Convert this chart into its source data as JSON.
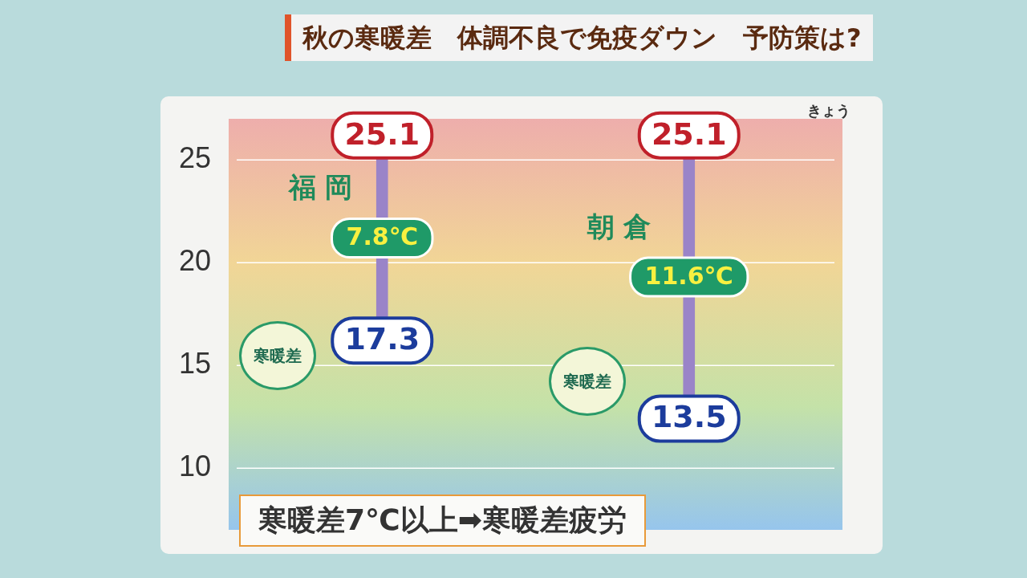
{
  "chart_data": {
    "type": "bar",
    "title": "秋の寒暖差　体調不良で免疫ダウン　予防策は?",
    "categories": [
      "福岡",
      "朝倉"
    ],
    "base": [
      17.3,
      13.5
    ],
    "values": [
      7.8,
      11.6
    ],
    "value_labels": [
      "7.8℃",
      "11.6℃"
    ],
    "color": "#9a84c8",
    "ylim": [
      7,
      27
    ],
    "yticks": [
      10,
      15,
      20,
      25
    ],
    "grid": "y",
    "annotations": [
      "きょう",
      "寒暖差",
      "寒暖差",
      "寒暖差7℃以上➡寒暖差疲労",
      {
        "text": "25.1",
        "x": "福岡",
        "y": 25.1
      },
      {
        "text": "17.3",
        "x": "福岡",
        "y": 17.3
      },
      {
        "text": "25.1",
        "x": "朝倉",
        "y": 25.1
      },
      {
        "text": "13.5",
        "x": "朝倉",
        "y": 13.5
      }
    ]
  }
}
